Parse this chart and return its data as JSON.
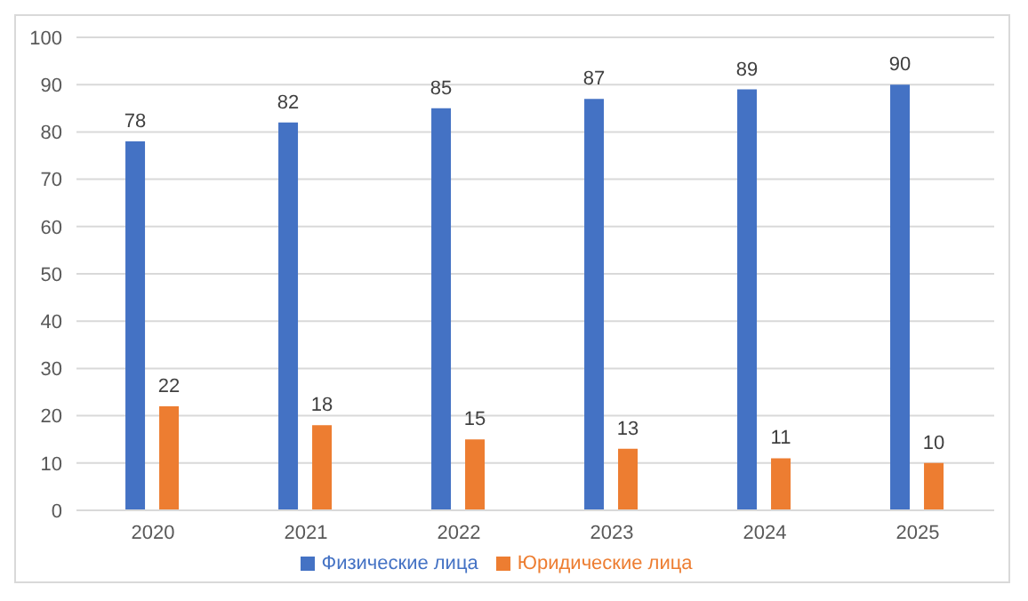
{
  "chart_data": {
    "type": "bar",
    "categories": [
      "2020",
      "2021",
      "2022",
      "2023",
      "2024",
      "2025"
    ],
    "series": [
      {
        "name": "Физические лица",
        "color": "#4472c4",
        "values": [
          78,
          82,
          85,
          87,
          89,
          90
        ]
      },
      {
        "name": "Юридические лица",
        "color": "#ed7d31",
        "values": [
          22,
          18,
          15,
          13,
          11,
          10
        ]
      }
    ],
    "ylim": [
      0,
      100
    ],
    "yticks": [
      0,
      10,
      20,
      30,
      40,
      50,
      60,
      70,
      80,
      90,
      100
    ],
    "grid": "y",
    "legend": "bottom",
    "data_labels": true
  }
}
